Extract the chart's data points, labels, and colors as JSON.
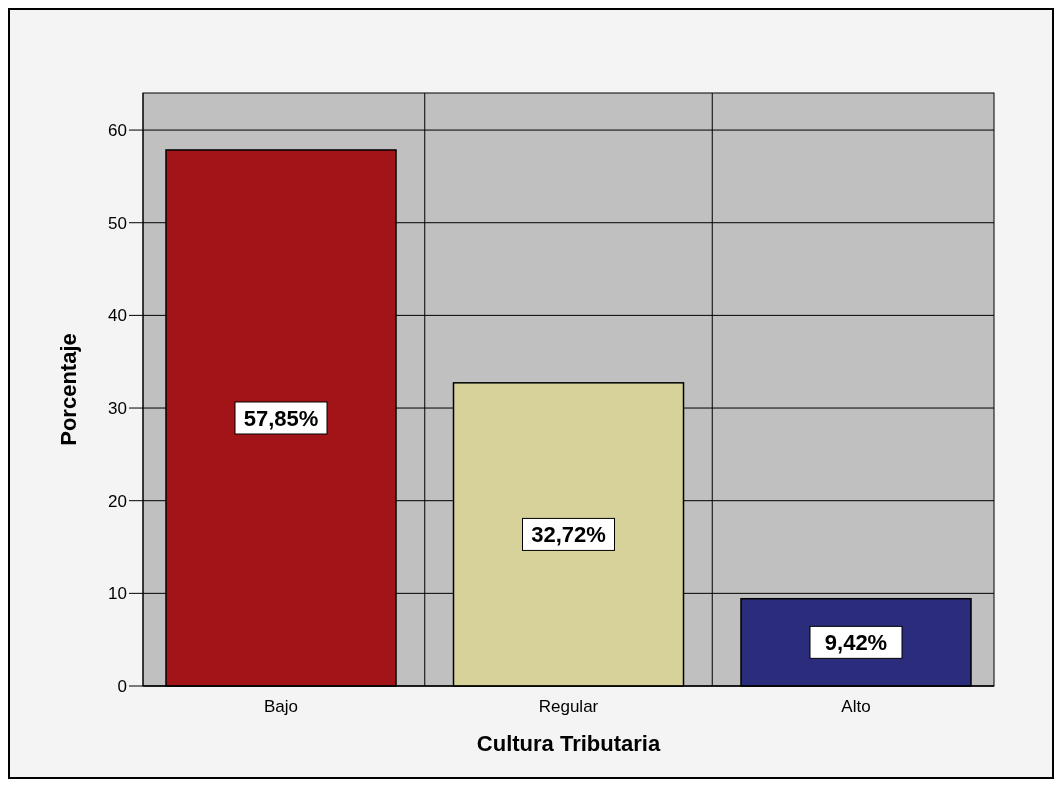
{
  "chart_data": {
    "type": "bar",
    "xlabel": "Cultura Tributaria",
    "ylabel": "Porcentaje",
    "categories": [
      "Bajo",
      "Regular",
      "Alto"
    ],
    "values": [
      57.85,
      32.72,
      9.42
    ],
    "colors": [
      "#a31419",
      "#d6d29a",
      "#2b2d7c"
    ],
    "value_labels": [
      "57,85%",
      "32,72%",
      "9,42%"
    ],
    "ylim": [
      0,
      64
    ],
    "yticks": [
      0,
      10,
      20,
      30,
      40,
      50,
      60
    ],
    "grid": true
  }
}
